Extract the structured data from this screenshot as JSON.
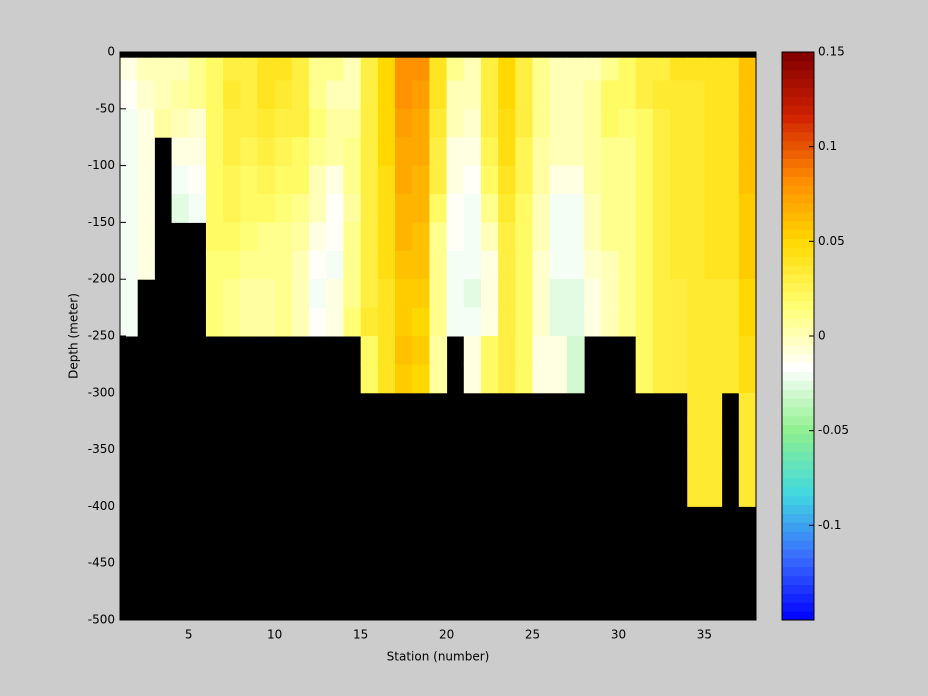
{
  "chart_data": {
    "type": "heatmap",
    "xlabel": "Station (number)",
    "ylabel": "Depth (meter)",
    "x": [
      1,
      2,
      3,
      4,
      5,
      6,
      7,
      8,
      9,
      10,
      11,
      12,
      13,
      14,
      15,
      16,
      17,
      18,
      19,
      20,
      21,
      22,
      23,
      24,
      25,
      26,
      27,
      28,
      29,
      30,
      31,
      32,
      33,
      34,
      35,
      36,
      37,
      38
    ],
    "y": [
      -5,
      -25,
      -50,
      -75,
      -100,
      -125,
      -150,
      -175,
      -200,
      -225,
      -250,
      -275,
      -300,
      -325,
      -350,
      -375,
      -400
    ],
    "values": [
      [
        -0.01,
        0,
        0,
        0,
        0.01,
        0.02,
        0.03,
        0.03,
        0.04,
        0.04,
        0.03,
        0.01,
        0.01,
        0,
        0.03,
        0.05,
        0.08,
        0.08,
        0.04,
        0.01,
        0,
        0.03,
        0.05,
        0.03,
        0.01,
        0,
        0,
        0,
        0.01,
        0.02,
        0.03,
        0.03,
        0.04,
        0.04,
        0.04,
        0.04,
        0.06
      ],
      [
        -0.015,
        -0.005,
        0,
        0.005,
        0.01,
        0.02,
        0.035,
        0.03,
        0.04,
        0.035,
        0.03,
        0.01,
        0,
        0,
        0.03,
        0.05,
        0.08,
        0.075,
        0.04,
        0,
        0,
        0.03,
        0.05,
        0.03,
        0.01,
        0,
        0,
        0.005,
        0.02,
        0.02,
        0.03,
        0.035,
        0.035,
        0.035,
        0.04,
        0.04,
        0.06
      ],
      [
        -0.02,
        -0.01,
        0.005,
        0,
        -0.005,
        0.02,
        0.03,
        0.03,
        0.035,
        0.03,
        0.03,
        0.015,
        0.005,
        0.005,
        0.03,
        0.05,
        0.075,
        0.07,
        0.035,
        0,
        -0.005,
        0.03,
        0.045,
        0.03,
        0.01,
        0,
        0,
        0.005,
        0.02,
        0.015,
        0.02,
        0.03,
        0.035,
        0.035,
        0.04,
        0.04,
        0.06
      ],
      [
        -0.02,
        -0.01,
        null,
        -0.01,
        -0.01,
        0.02,
        0.03,
        0.025,
        0.03,
        0.025,
        0.02,
        0.01,
        0.005,
        0.01,
        0.03,
        0.05,
        0.07,
        0.07,
        0.03,
        -0.01,
        -0.01,
        0.025,
        0.045,
        0.025,
        0.005,
        0,
        0,
        0.005,
        0.01,
        0.01,
        0.02,
        0.03,
        0.035,
        0.035,
        0.04,
        0.04,
        0.06
      ],
      [
        -0.02,
        -0.01,
        null,
        -0.02,
        -0.015,
        0.02,
        0.025,
        0.02,
        0.025,
        0.02,
        0.02,
        0,
        -0.01,
        0.01,
        0.03,
        0.045,
        0.07,
        0.065,
        0.03,
        -0.01,
        -0.015,
        0.02,
        0.04,
        0.025,
        0.005,
        -0.01,
        -0.01,
        0.005,
        0.01,
        0.01,
        0.02,
        0.03,
        0.035,
        0.035,
        0.04,
        0.04,
        0.06
      ],
      [
        -0.02,
        -0.01,
        null,
        -0.025,
        -0.02,
        0.02,
        0.025,
        0.02,
        0.02,
        0.015,
        0.01,
        0,
        -0.015,
        0.005,
        0.03,
        0.045,
        0.065,
        0.065,
        0.02,
        -0.015,
        -0.02,
        0.01,
        0.035,
        0.02,
        0,
        -0.02,
        -0.02,
        0,
        0.01,
        0.01,
        0.02,
        0.03,
        0.035,
        0.035,
        0.04,
        0.04,
        0.055
      ],
      [
        -0.02,
        -0.01,
        null,
        null,
        null,
        0.02,
        0.02,
        0.015,
        0.01,
        0.01,
        0.005,
        -0.01,
        -0.015,
        0.01,
        0.03,
        0.045,
        0.065,
        0.06,
        0.01,
        -0.015,
        -0.02,
        0,
        0.03,
        0.02,
        0,
        -0.02,
        -0.02,
        0,
        0.01,
        0.01,
        0.02,
        0.03,
        0.035,
        0.035,
        0.04,
        0.04,
        0.055
      ],
      [
        -0.02,
        -0.01,
        null,
        null,
        null,
        0.015,
        0.015,
        0.01,
        0.01,
        0.01,
        0,
        -0.015,
        -0.02,
        0.01,
        0.03,
        0.045,
        0.06,
        0.06,
        0.01,
        -0.02,
        -0.02,
        -0.01,
        0.03,
        0.02,
        -0.005,
        -0.02,
        -0.02,
        -0.005,
        0,
        0.01,
        0.02,
        0.03,
        0.035,
        0.035,
        0.04,
        0.04,
        0.055
      ],
      [
        -0.02,
        null,
        null,
        null,
        null,
        0.015,
        0.01,
        0.005,
        0.005,
        0.01,
        0,
        -0.02,
        -0.01,
        0.01,
        0.03,
        0.04,
        0.055,
        0.055,
        0.01,
        -0.02,
        -0.025,
        -0.01,
        0.03,
        0.02,
        -0.005,
        -0.025,
        -0.025,
        -0.01,
        0,
        0.01,
        0.02,
        0.03,
        0.03,
        0.035,
        0.035,
        0.035,
        0.05
      ],
      [
        -0.02,
        null,
        null,
        null,
        null,
        0.015,
        0.01,
        0.005,
        0.005,
        0.01,
        0,
        -0.015,
        -0.01,
        0.015,
        0.035,
        0.04,
        0.055,
        0.05,
        0.01,
        -0.02,
        -0.02,
        -0.01,
        0.03,
        0.02,
        -0.005,
        -0.025,
        -0.025,
        -0.01,
        0,
        0.01,
        0.02,
        0.03,
        0.03,
        0.035,
        0.035,
        0.035,
        0.05
      ],
      [
        null,
        null,
        null,
        null,
        null,
        null,
        null,
        null,
        null,
        null,
        null,
        null,
        null,
        null,
        0.02,
        0.04,
        0.06,
        0.055,
        0.005,
        null,
        -0.01,
        0.02,
        0.03,
        0.02,
        -0.01,
        -0.01,
        -0.03,
        null,
        null,
        null,
        0.02,
        0.03,
        0.03,
        0.035,
        0.035,
        0.035,
        0.045
      ],
      [
        null,
        null,
        null,
        null,
        null,
        null,
        null,
        null,
        null,
        null,
        null,
        null,
        null,
        null,
        0.02,
        0.04,
        0.055,
        0.05,
        0.005,
        null,
        -0.01,
        0.02,
        0.03,
        0.02,
        -0.01,
        -0.01,
        -0.03,
        null,
        null,
        null,
        0.02,
        0.03,
        0.03,
        0.035,
        0.035,
        0.035,
        0.045
      ],
      [
        null,
        null,
        null,
        null,
        null,
        null,
        null,
        null,
        null,
        null,
        null,
        null,
        null,
        null,
        null,
        null,
        null,
        null,
        null,
        null,
        null,
        null,
        null,
        null,
        null,
        null,
        null,
        null,
        null,
        null,
        null,
        null,
        null,
        0.035,
        0.035,
        null,
        0.035
      ],
      [
        null,
        null,
        null,
        null,
        null,
        null,
        null,
        null,
        null,
        null,
        null,
        null,
        null,
        null,
        null,
        null,
        null,
        null,
        null,
        null,
        null,
        null,
        null,
        null,
        null,
        null,
        null,
        null,
        null,
        null,
        null,
        null,
        null,
        0.035,
        0.035,
        null,
        0.035
      ],
      [
        null,
        null,
        null,
        null,
        null,
        null,
        null,
        null,
        null,
        null,
        null,
        null,
        null,
        null,
        null,
        null,
        null,
        null,
        null,
        null,
        null,
        null,
        null,
        null,
        null,
        null,
        null,
        null,
        null,
        null,
        null,
        null,
        null,
        0.035,
        0.035,
        null,
        0.035
      ],
      [
        null,
        null,
        null,
        null,
        null,
        null,
        null,
        null,
        null,
        null,
        null,
        null,
        null,
        null,
        null,
        null,
        null,
        null,
        null,
        null,
        null,
        null,
        null,
        null,
        null,
        null,
        null,
        null,
        null,
        null,
        null,
        null,
        null,
        0.035,
        0.035,
        null,
        0.035
      ]
    ],
    "xlim": [
      1,
      38
    ],
    "ylim": [
      -500,
      0
    ],
    "xticks": [
      5,
      10,
      15,
      20,
      25,
      30,
      35
    ],
    "yticks": [
      0,
      -50,
      -100,
      -150,
      -200,
      -250,
      -300,
      -350,
      -400,
      -450,
      -500
    ],
    "clim": [
      -0.15,
      0.15
    ],
    "cticks": [
      -0.1,
      -0.05,
      0,
      0.05,
      0.1,
      0.15
    ],
    "colormap": [
      "#0000ff",
      "#3a6cff",
      "#40d8e0",
      "#8ef08e",
      "#ffffff",
      "#ffff70",
      "#ffd800",
      "#ff8a00",
      "#d02000",
      "#800000"
    ],
    "background": "#000000"
  }
}
